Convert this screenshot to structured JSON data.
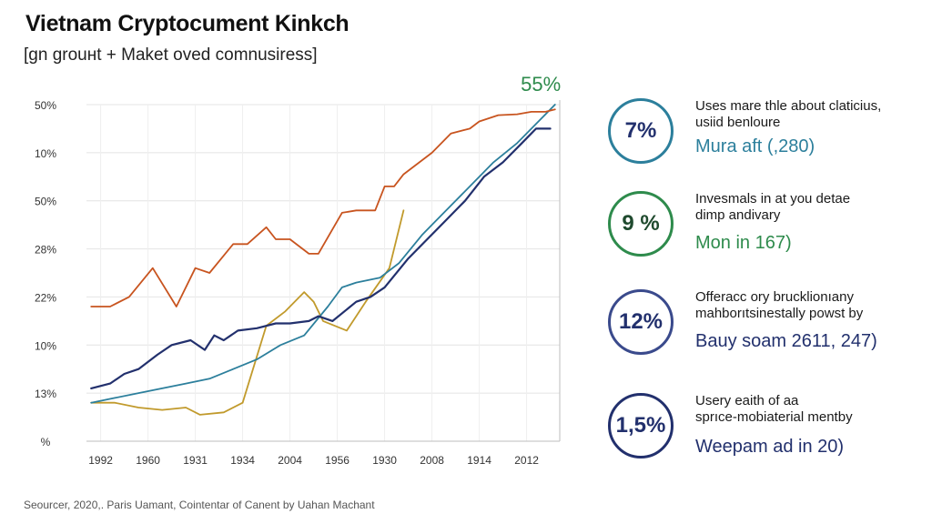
{
  "header": {
    "title": "Vietnam Cryptocument Kinkch",
    "subtitle": "[ɡn grouнt + Maket oved comnusiress]"
  },
  "chart_data": {
    "type": "line",
    "title": "Vietnam Cryptocument Kinkch",
    "subtitle": "[ɡn grouнt + Maket oved comnusiress]",
    "x_tick_labels": [
      "1992",
      "1960",
      "1931",
      "1934",
      "2004",
      "1956",
      "1930",
      "2008",
      "1914",
      "2012"
    ],
    "y_tick_labels": [
      "50%",
      "10%",
      "50%",
      "28%",
      "22%",
      "10%",
      "13%",
      "%"
    ],
    "x_index_range": [
      0,
      10
    ],
    "y_range": [
      0,
      7
    ],
    "end_annotation": "55%",
    "grid": true,
    "series": [
      {
        "name": "orange",
        "color": "#c8541f",
        "x": [
          0,
          0.4,
          0.8,
          1.3,
          1.8,
          2.2,
          2.5,
          3.0,
          3.3,
          3.7,
          3.9,
          4.2,
          4.6,
          4.8,
          5.3,
          5.6,
          6.0,
          6.2,
          6.4,
          6.6,
          7.2,
          7.6,
          8.0,
          8.2,
          8.6,
          9.0,
          9.3,
          9.6,
          9.8
        ],
        "y": [
          2.8,
          2.8,
          3.0,
          3.6,
          2.8,
          3.6,
          3.5,
          4.1,
          4.1,
          4.45,
          4.2,
          4.2,
          3.9,
          3.9,
          4.75,
          4.8,
          4.8,
          5.3,
          5.3,
          5.55,
          6.0,
          6.4,
          6.5,
          6.65,
          6.78,
          6.8,
          6.85,
          6.85,
          6.9
        ]
      },
      {
        "name": "dark-navy",
        "color": "#22306d",
        "x": [
          0,
          0.4,
          0.7,
          1.0,
          1.4,
          1.7,
          2.1,
          2.4,
          2.6,
          2.8,
          3.1,
          3.5,
          3.9,
          4.2,
          4.6,
          4.8,
          5.1,
          5.6,
          5.9,
          6.2,
          6.7,
          7.1,
          7.5,
          7.9,
          8.3,
          8.7,
          9.1,
          9.4,
          9.7
        ],
        "y": [
          1.1,
          1.2,
          1.4,
          1.5,
          1.8,
          2.0,
          2.1,
          1.9,
          2.2,
          2.1,
          2.3,
          2.35,
          2.45,
          2.45,
          2.5,
          2.6,
          2.5,
          2.9,
          3.0,
          3.2,
          3.8,
          4.2,
          4.6,
          5.0,
          5.5,
          5.8,
          6.2,
          6.5,
          6.5
        ]
      },
      {
        "name": "teal",
        "color": "#2c7f9c",
        "x": [
          0,
          0.5,
          1.0,
          1.5,
          2.0,
          2.5,
          3.0,
          3.5,
          4.0,
          4.5,
          5.0,
          5.3,
          5.6,
          6.1,
          6.5,
          7.0,
          7.5,
          8.0,
          8.5,
          9.0,
          9.5,
          9.8
        ],
        "y": [
          0.8,
          0.9,
          1.0,
          1.1,
          1.2,
          1.3,
          1.5,
          1.7,
          2.0,
          2.2,
          2.8,
          3.2,
          3.3,
          3.4,
          3.7,
          4.3,
          4.8,
          5.3,
          5.8,
          6.2,
          6.7,
          7.0
        ]
      },
      {
        "name": "gold",
        "color": "#c19a2c",
        "x": [
          0,
          0.5,
          1.0,
          1.5,
          2.0,
          2.3,
          2.8,
          3.2,
          3.7,
          4.1,
          4.5,
          4.7,
          4.9,
          5.4,
          5.8,
          6.3,
          6.6
        ],
        "y": [
          0.8,
          0.8,
          0.7,
          0.65,
          0.7,
          0.55,
          0.6,
          0.8,
          2.4,
          2.7,
          3.1,
          2.9,
          2.5,
          2.3,
          2.9,
          3.6,
          4.8
        ]
      }
    ]
  },
  "stats": [
    {
      "value": "7%",
      "color": "#2c7f9c",
      "desc_line1": "Uses mare thle about claticius,",
      "desc_line2": "usiid benloure",
      "detail": "Mura aft (,280)"
    },
    {
      "value": "9 %",
      "color": "#2e8b4c",
      "desc_line1": "Invesmals in at you detae",
      "desc_line2": "dimp andivary",
      "detail": "Mon in 167)"
    },
    {
      "value": "12%",
      "color": "#22306d",
      "desc_line1": "Offeracc ory brucklionıany",
      "desc_line2": "mahborıtsinestally powst by",
      "detail": "Bauy soam 2611, 247)"
    },
    {
      "value": "1,5%",
      "color": "#22306d",
      "desc_line1": "Usery eaith of aa",
      "desc_line2": "sprıce-mobiaterial mentby",
      "detail": "Weepam ad in 20)"
    }
  ],
  "footer": {
    "source": "Seourcer, 2020,. Paris Uamant, Cointentar of Canent by Uahan Machant"
  }
}
